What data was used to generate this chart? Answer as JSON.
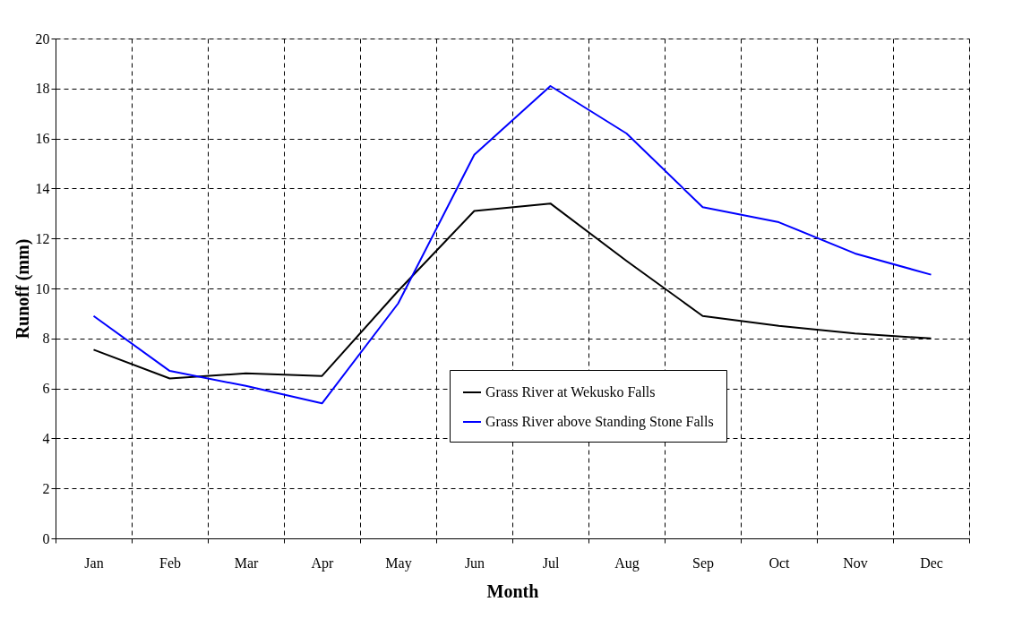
{
  "chart_data": {
    "type": "line",
    "xlabel": "Month",
    "ylabel": "Runoff (mm)",
    "categories": [
      "Jan",
      "Feb",
      "Mar",
      "Apr",
      "May",
      "Jun",
      "Jul",
      "Aug",
      "Sep",
      "Oct",
      "Nov",
      "Dec"
    ],
    "series": [
      {
        "name": "Grass River at Wekusko Falls",
        "color": "#000000",
        "values": [
          7.55,
          6.4,
          6.6,
          6.5,
          9.9,
          13.1,
          13.4,
          11.1,
          8.9,
          8.5,
          8.2,
          8.0
        ]
      },
      {
        "name": "Grass River above Standing Stone Falls",
        "color": "#0000ff",
        "values": [
          8.9,
          6.7,
          6.1,
          5.4,
          9.4,
          15.35,
          18.1,
          16.2,
          13.25,
          12.65,
          11.4,
          10.55
        ]
      }
    ],
    "ylim": [
      0,
      20
    ],
    "yticks": [
      0,
      2,
      4,
      6,
      8,
      10,
      12,
      14,
      16,
      18,
      20
    ],
    "grid": true,
    "legend": "bottom",
    "marker": "none",
    "line_style": "solid"
  }
}
